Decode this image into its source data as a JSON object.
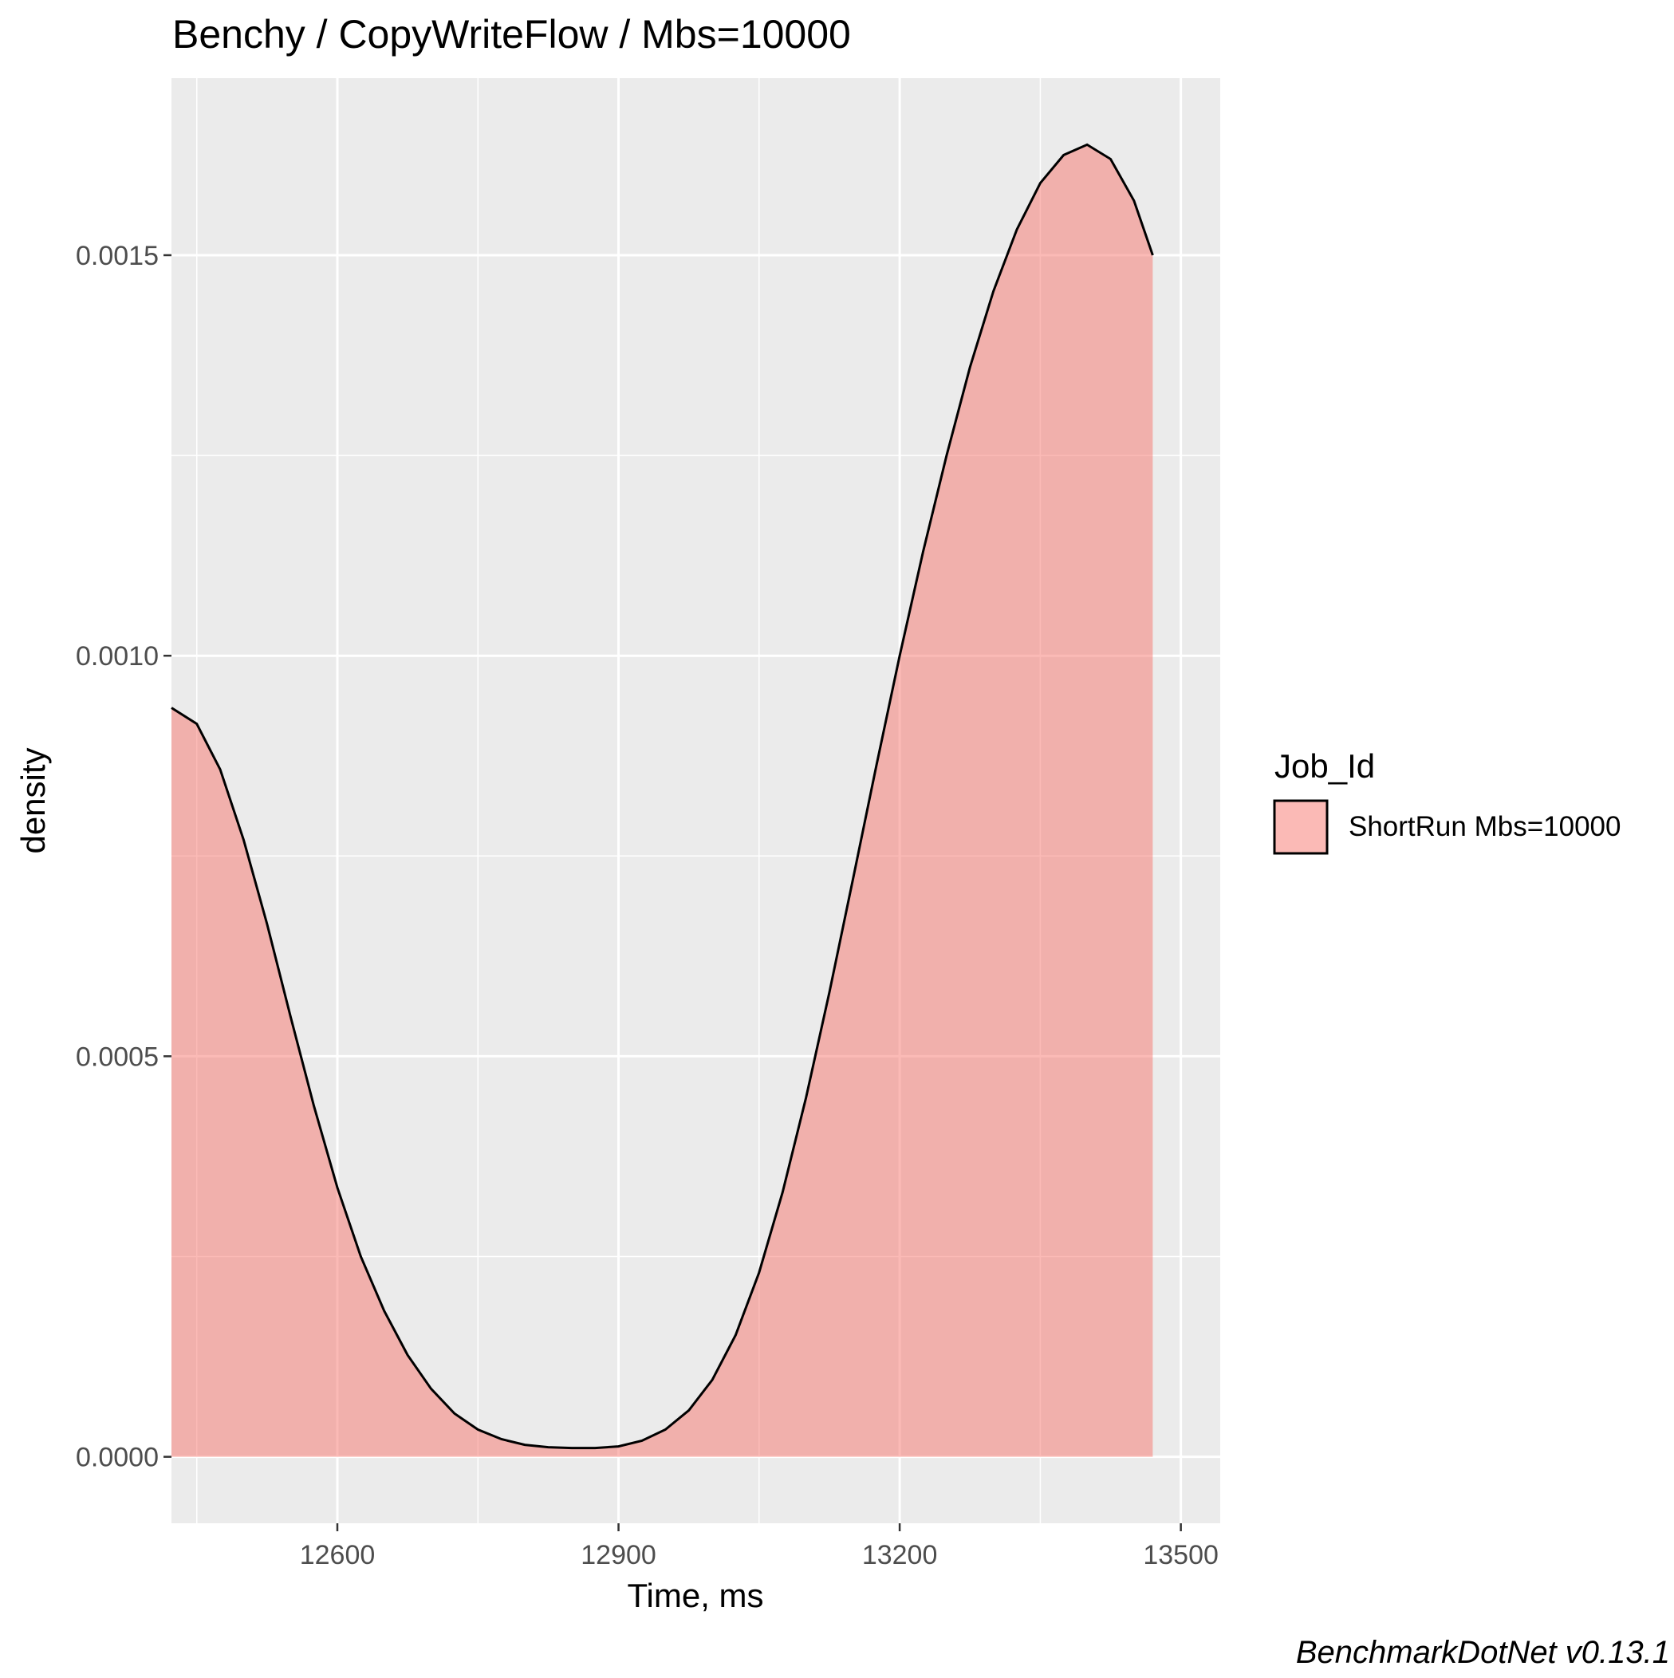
{
  "chart_data": {
    "type": "area",
    "title": "Benchy / CopyWriteFlow / Mbs=10000",
    "xlabel": "Time, ms",
    "ylabel": "density",
    "caption": "BenchmarkDotNet v0.13.1",
    "xlim": [
      12423,
      13542
    ],
    "ylim": [
      -8.3e-05,
      0.001721
    ],
    "x_ticks": [
      12600,
      12900,
      13200,
      13500
    ],
    "x_tick_labels": [
      "12600",
      "12900",
      "13200",
      "13500"
    ],
    "x_minor_ticks": [
      12450,
      12750,
      13050,
      13350
    ],
    "y_ticks": [
      0.0,
      0.0005,
      0.001,
      0.0015
    ],
    "y_tick_labels": [
      "0.0000",
      "0.0005",
      "0.0010",
      "0.0015"
    ],
    "y_minor_ticks": [
      0.00025,
      0.00075,
      0.00125
    ],
    "grid": true,
    "legend": {
      "title": "Job_Id",
      "position": "right",
      "entries": [
        {
          "label": "ShortRun Mbs=10000",
          "color": "#F8766D"
        }
      ]
    },
    "series": [
      {
        "name": "ShortRun Mbs=10000",
        "color": "#F8766D",
        "fill_opacity": 0.5,
        "x": [
          12423,
          12450,
          12475,
          12500,
          12525,
          12550,
          12575,
          12600,
          12625,
          12650,
          12675,
          12700,
          12725,
          12750,
          12775,
          12800,
          12825,
          12850,
          12875,
          12900,
          12925,
          12950,
          12975,
          13000,
          13025,
          13050,
          13075,
          13100,
          13125,
          13150,
          13175,
          13200,
          13225,
          13250,
          13275,
          13300,
          13325,
          13350,
          13375,
          13400,
          13425,
          13450,
          13470
        ],
        "y": [
          0.000935,
          0.000915,
          0.000858,
          0.00077,
          0.000665,
          0.00055,
          0.000438,
          0.000336,
          0.00025,
          0.000182,
          0.000127,
          8.5e-05,
          5.4e-05,
          3.4e-05,
          2.2e-05,
          1.5e-05,
          1.2e-05,
          1.1e-05,
          1.1e-05,
          1.3e-05,
          2e-05,
          3.4e-05,
          5.8e-05,
          9.6e-05,
          0.000152,
          0.00023,
          0.00033,
          0.000448,
          0.00058,
          0.00072,
          0.000862,
          0.001,
          0.00113,
          0.00125,
          0.00136,
          0.001455,
          0.001532,
          0.00159,
          0.001625,
          0.001638,
          0.00162,
          0.001568,
          0.0015
        ]
      }
    ]
  }
}
